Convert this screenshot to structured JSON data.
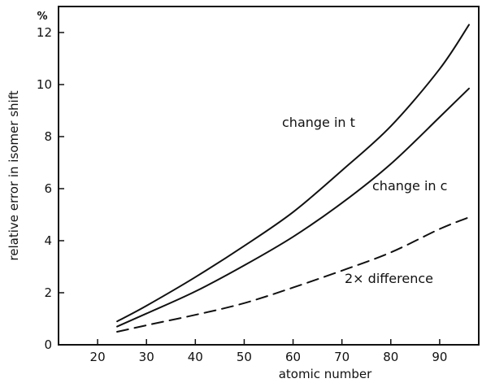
{
  "chart_data": {
    "type": "line",
    "xlabel": "atomic number",
    "ylabel": "relative error in isomer shift",
    "y_unit": "%",
    "xlim": [
      12,
      98
    ],
    "ylim": [
      0,
      13
    ],
    "x_ticks": [
      20,
      30,
      40,
      50,
      60,
      70,
      80,
      90
    ],
    "y_ticks": [
      0,
      2,
      4,
      6,
      8,
      10,
      12
    ],
    "grid": false,
    "series": [
      {
        "name": "change in t",
        "style": "solid",
        "x": [
          24,
          30,
          40,
          50,
          60,
          70,
          80,
          90,
          96
        ],
        "y": [
          0.9,
          1.5,
          2.6,
          3.8,
          5.1,
          6.7,
          8.4,
          10.6,
          12.3
        ]
      },
      {
        "name": "change in c",
        "style": "solid",
        "x": [
          24,
          30,
          40,
          50,
          60,
          70,
          80,
          90,
          96
        ],
        "y": [
          0.7,
          1.2,
          2.05,
          3.05,
          4.15,
          5.45,
          6.95,
          8.75,
          9.85
        ]
      },
      {
        "name": "2× difference",
        "style": "dashed",
        "x": [
          24,
          30,
          40,
          50,
          60,
          70,
          80,
          90,
          96
        ],
        "y": [
          0.5,
          0.75,
          1.15,
          1.6,
          2.2,
          2.85,
          3.55,
          4.45,
          4.9
        ]
      }
    ]
  }
}
